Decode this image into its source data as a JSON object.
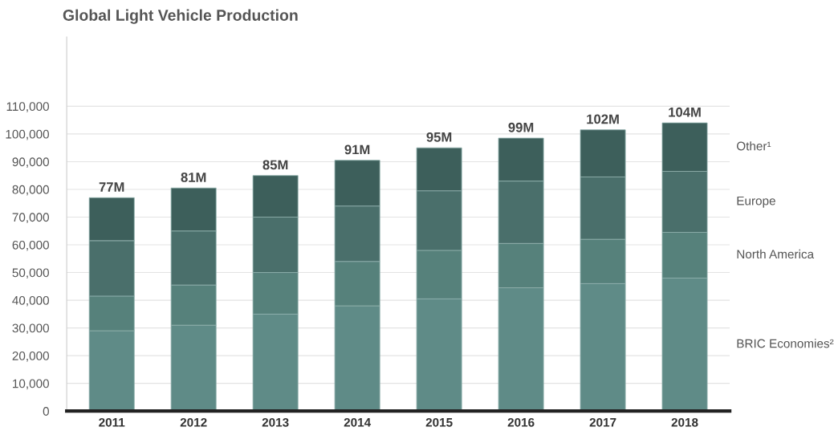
{
  "chart_data": {
    "type": "bar",
    "title": "Global Light Vehicle Production",
    "stacked": true,
    "categories": [
      "2011",
      "2012",
      "2013",
      "2014",
      "2015",
      "2016",
      "2017",
      "2018"
    ],
    "series": [
      {
        "name": "BRIC Economies²",
        "color": "#5f8b87",
        "values": [
          29000,
          31000,
          35000,
          38000,
          40500,
          44500,
          46000,
          48000
        ]
      },
      {
        "name": "North America",
        "color": "#56817b",
        "values": [
          12500,
          14500,
          15000,
          16000,
          17500,
          16000,
          16000,
          16500
        ]
      },
      {
        "name": "Europe",
        "color": "#4a6f6b",
        "values": [
          20000,
          19500,
          20000,
          20000,
          21500,
          22500,
          22500,
          22000
        ]
      },
      {
        "name": "Other¹",
        "color": "#3d5f5b",
        "values": [
          15500,
          15500,
          15000,
          16500,
          15500,
          15500,
          17000,
          17500
        ]
      }
    ],
    "totals": [
      "77M",
      "81M",
      "85M",
      "91M",
      "95M",
      "99M",
      "102M",
      "104M"
    ],
    "ylim": [
      0,
      135000
    ],
    "yticks": [
      0,
      {
        "value": 10000,
        "label": "10,000"
      },
      {
        "value": 20000,
        "label": "20,000"
      },
      {
        "value": 30000,
        "label": "30,000"
      },
      {
        "value": 40000,
        "label": "40,000"
      },
      {
        "value": 50000,
        "label": "50,000"
      },
      {
        "value": 60000,
        "label": "60,000"
      },
      {
        "value": 70000,
        "label": "70,000"
      },
      {
        "value": 80000,
        "label": "80,000"
      },
      {
        "value": 90000,
        "label": "90,000"
      },
      {
        "value": 100000,
        "label": "100,000"
      },
      {
        "value": 110000,
        "label": "110,000"
      }
    ],
    "grid": "y",
    "legend": "right"
  }
}
